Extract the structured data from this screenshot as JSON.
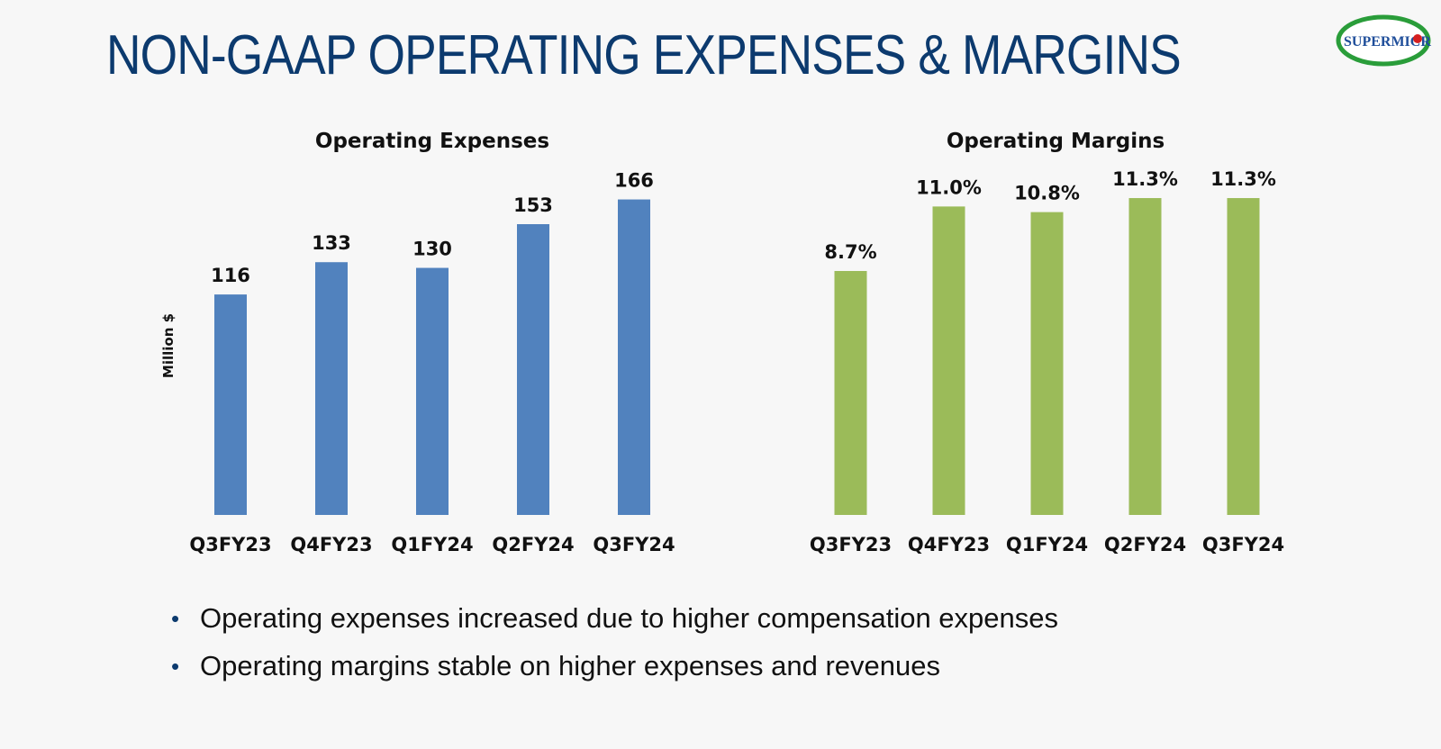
{
  "slide": {
    "title": "NON-GAAP OPERATING EXPENSES & MARGINS",
    "logo_text": "SUPERMICR"
  },
  "colors": {
    "title": "#0c3a6e",
    "expenses_bar": "#5182be",
    "margins_bar": "#9bbb59",
    "logo_green": "#2a9d3a",
    "logo_red": "#d62020"
  },
  "chart_data": [
    {
      "type": "bar",
      "title": "Operating Expenses",
      "ylabel": "Million $",
      "categories": [
        "Q3FY23",
        "Q4FY23",
        "Q1FY24",
        "Q2FY24",
        "Q3FY24"
      ],
      "values": [
        116,
        133,
        130,
        153,
        166
      ],
      "data_labels": [
        "116",
        "133",
        "130",
        "153",
        "166"
      ],
      "ylim": [
        0,
        180
      ],
      "grid": false,
      "color": "#5182be"
    },
    {
      "type": "bar",
      "title": "Operating Margins",
      "ylabel": "",
      "categories": [
        "Q3FY23",
        "Q4FY23",
        "Q1FY24",
        "Q2FY24",
        "Q3FY24"
      ],
      "values": [
        8.7,
        11.0,
        10.8,
        11.3,
        11.3
      ],
      "data_labels": [
        "8.7%",
        "11.0%",
        "10.8%",
        "11.3%",
        "11.3%"
      ],
      "ylim": [
        0,
        12.2
      ],
      "grid": false,
      "color": "#9bbb59"
    }
  ],
  "bullets": [
    "Operating expenses increased due to higher compensation expenses",
    "Operating margins stable on higher expenses and revenues"
  ]
}
